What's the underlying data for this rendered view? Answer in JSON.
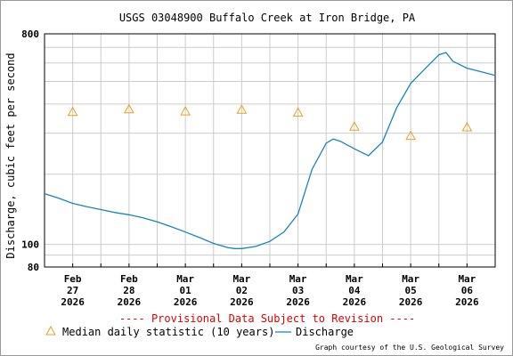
{
  "chart_data": {
    "type": "line",
    "title": "USGS 03048900 Buffalo Creek at Iron Bridge, PA",
    "ylabel": "Discharge, cubic feet per second",
    "yscale": "log",
    "ylim": [
      80,
      800
    ],
    "xlim": [
      "2026-02-27 00:00",
      "2026-03-07 00:00"
    ],
    "grid": true,
    "y_tick_labels": [
      {
        "value": 800,
        "label": "800"
      },
      {
        "value": 100,
        "label": "100"
      },
      {
        "value": 80,
        "label": "80"
      }
    ],
    "x_tick_labels": [
      {
        "date": "2026-02-27",
        "month": "Feb",
        "day": "27",
        "year": "2026"
      },
      {
        "date": "2026-02-28",
        "month": "Feb",
        "day": "28",
        "year": "2026"
      },
      {
        "date": "2026-03-01",
        "month": "Mar",
        "day": "01",
        "year": "2026"
      },
      {
        "date": "2026-03-02",
        "month": "Mar",
        "day": "02",
        "year": "2026"
      },
      {
        "date": "2026-03-03",
        "month": "Mar",
        "day": "03",
        "year": "2026"
      },
      {
        "date": "2026-03-04",
        "month": "Mar",
        "day": "04",
        "year": "2026"
      },
      {
        "date": "2026-03-05",
        "month": "Mar",
        "day": "05",
        "year": "2026"
      },
      {
        "date": "2026-03-06",
        "month": "Mar",
        "day": "06",
        "year": "2026"
      }
    ],
    "series": [
      {
        "name": "Median daily statistic (10 years)",
        "style": "triangle-markers",
        "color": "#e6a020",
        "points": [
          {
            "x": "2026-02-27 12:00",
            "y": 370
          },
          {
            "x": "2026-02-28 12:00",
            "y": 380
          },
          {
            "x": "2026-03-01 12:00",
            "y": 372
          },
          {
            "x": "2026-03-02 12:00",
            "y": 378
          },
          {
            "x": "2026-03-03 12:00",
            "y": 368
          },
          {
            "x": "2026-03-04 12:00",
            "y": 320
          },
          {
            "x": "2026-03-05 12:00",
            "y": 292
          },
          {
            "x": "2026-03-06 12:00",
            "y": 318
          }
        ]
      },
      {
        "name": "Discharge",
        "style": "line",
        "color": "#1a84b8",
        "points": [
          {
            "x": "2026-02-27 00:00",
            "y": 165
          },
          {
            "x": "2026-02-27 06:00",
            "y": 158
          },
          {
            "x": "2026-02-27 12:00",
            "y": 150
          },
          {
            "x": "2026-02-27 18:00",
            "y": 145
          },
          {
            "x": "2026-02-28 00:00",
            "y": 141
          },
          {
            "x": "2026-02-28 06:00",
            "y": 137
          },
          {
            "x": "2026-02-28 12:00",
            "y": 134
          },
          {
            "x": "2026-02-28 18:00",
            "y": 130
          },
          {
            "x": "2026-03-01 00:00",
            "y": 125
          },
          {
            "x": "2026-03-01 06:00",
            "y": 119
          },
          {
            "x": "2026-03-01 12:00",
            "y": 113
          },
          {
            "x": "2026-03-01 18:00",
            "y": 107
          },
          {
            "x": "2026-03-02 00:00",
            "y": 101
          },
          {
            "x": "2026-03-02 06:00",
            "y": 97
          },
          {
            "x": "2026-03-02 09:00",
            "y": 96
          },
          {
            "x": "2026-03-02 12:00",
            "y": 96
          },
          {
            "x": "2026-03-02 18:00",
            "y": 98
          },
          {
            "x": "2026-03-03 00:00",
            "y": 103
          },
          {
            "x": "2026-03-03 06:00",
            "y": 113
          },
          {
            "x": "2026-03-03 12:00",
            "y": 135
          },
          {
            "x": "2026-03-03 18:00",
            "y": 210
          },
          {
            "x": "2026-03-04 00:00",
            "y": 272
          },
          {
            "x": "2026-03-04 03:00",
            "y": 283
          },
          {
            "x": "2026-03-04 06:00",
            "y": 277
          },
          {
            "x": "2026-03-04 12:00",
            "y": 257
          },
          {
            "x": "2026-03-04 18:00",
            "y": 240
          },
          {
            "x": "2026-03-05 00:00",
            "y": 275
          },
          {
            "x": "2026-03-05 06:00",
            "y": 385
          },
          {
            "x": "2026-03-05 12:00",
            "y": 490
          },
          {
            "x": "2026-03-05 18:00",
            "y": 565
          },
          {
            "x": "2026-03-06 00:00",
            "y": 650
          },
          {
            "x": "2026-03-06 03:00",
            "y": 665
          },
          {
            "x": "2026-03-06 06:00",
            "y": 610
          },
          {
            "x": "2026-03-06 12:00",
            "y": 570
          },
          {
            "x": "2026-03-06 18:00",
            "y": 550
          },
          {
            "x": "2026-03-07 00:00",
            "y": 530
          }
        ]
      }
    ],
    "legend": {
      "placement": "bottom",
      "items": [
        "Median daily statistic (10 years)",
        "Discharge"
      ]
    },
    "annotations": [
      {
        "text": "---- Provisional Data Subject to Revision ----",
        "color": "#dd0000"
      }
    ]
  },
  "footer": {
    "credit": "Graph courtesy of the U.S. Geological Survey"
  }
}
